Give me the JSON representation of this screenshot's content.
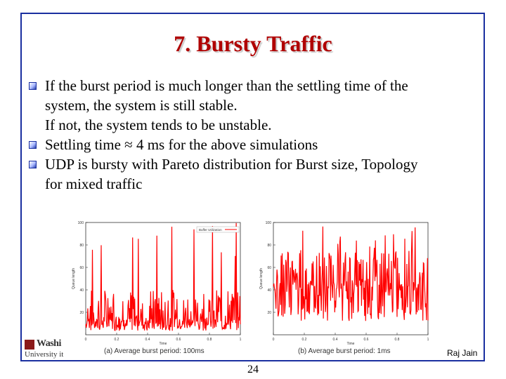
{
  "slide": {
    "title": "7. Bursty Traffic",
    "bullets": [
      {
        "lines": [
          "If the burst period is much longer than the settling time of the",
          "system, the system is still stable.",
          "If not, the system tends to be unstable."
        ]
      },
      {
        "lines": [
          "Settling time ≈ 4 ms for the above simulations"
        ]
      },
      {
        "lines": [
          "UDP is bursty with Pareto distribution for Burst size, Topology",
          "for mixed traffic"
        ]
      }
    ],
    "author": "Raj Jain",
    "page_number": "24",
    "logo_text": [
      "Washi",
      "University it"
    ]
  },
  "chart_data": [
    {
      "type": "line",
      "color": "#ff0000",
      "ylabel": "Queue length",
      "xlabel": "Time",
      "legend": "Buffer Utilization",
      "y_ticks": [
        "100",
        "80",
        "60",
        "40",
        "20"
      ],
      "x_ticks": [
        "0",
        "0.2",
        "0.4",
        "0.6",
        "0.8",
        "1"
      ],
      "ylim": [
        0,
        100
      ],
      "caption": "(a) Average burst period: 100ms",
      "pattern": {
        "base": 12,
        "typical_peak": 40,
        "max_peak": 100
      }
    },
    {
      "type": "line",
      "color": "#ff0000",
      "ylabel": "Queue length",
      "xlabel": "Time",
      "y_ticks": [
        "100",
        "80",
        "60",
        "40",
        "20"
      ],
      "x_ticks": [
        "0",
        "0.2",
        "0.4",
        "0.6",
        "0.8",
        "1"
      ],
      "ylim": [
        0,
        100
      ],
      "caption": "(b) Average burst period: 1ms",
      "pattern": {
        "base": 40,
        "typical_peak": 75,
        "max_peak": 100
      }
    }
  ]
}
